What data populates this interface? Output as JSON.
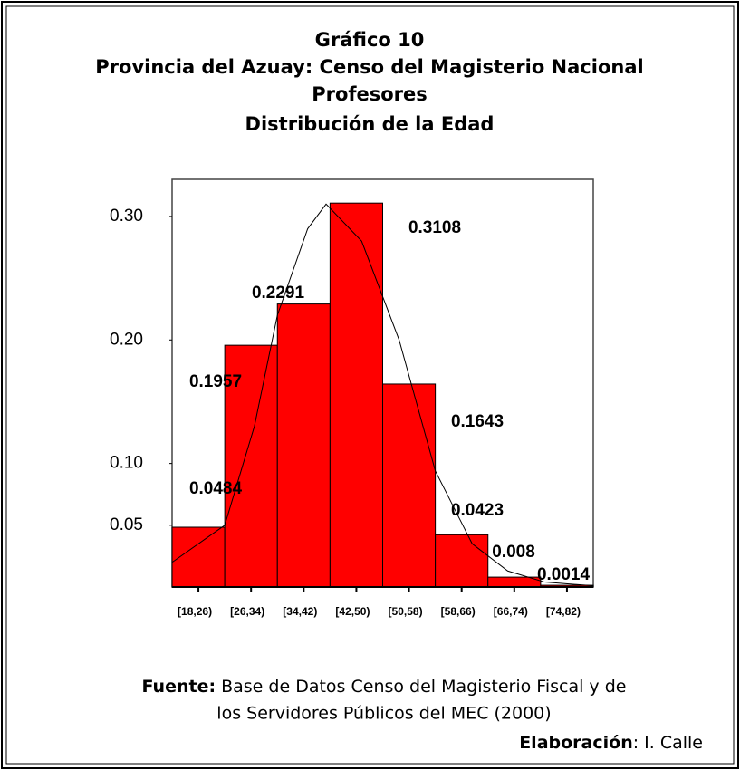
{
  "chart_data": {
    "type": "histogram",
    "title": "Gráfico 10",
    "subtitle": [
      "Provincia del Azuay: Censo del Magisterio Nacional",
      "Profesores",
      "Distribución de la Edad"
    ],
    "bins": [
      18,
      26,
      34,
      42,
      50,
      58,
      66,
      74,
      82
    ],
    "categories": [
      "[18,26)",
      "[26,34)",
      "[34,42)",
      "[42,50)",
      "[50,58)",
      "[58,66)",
      "[66,74)",
      "[74,82)"
    ],
    "values": [
      0.0484,
      0.1957,
      0.2291,
      0.3108,
      0.1643,
      0.0423,
      0.008,
      0.0014
    ],
    "color": "#ff0000",
    "xlim": [
      18,
      82
    ],
    "ylim": [
      0,
      0.33
    ],
    "yticks": [
      {
        "value": 0.05,
        "label": "0.05"
      },
      {
        "value": 0.1,
        "label": "0.10"
      },
      {
        "value": 0.2,
        "label": "0.20"
      },
      {
        "value": 0.3,
        "label": "0.30"
      }
    ],
    "curve": {
      "x": [
        18,
        26,
        30.5,
        34,
        38.6,
        41.4,
        46.8,
        52.5,
        58,
        63.6,
        69,
        74.6,
        82
      ],
      "values": [
        0.02,
        0.05,
        0.13,
        0.22,
        0.29,
        0.31,
        0.28,
        0.2,
        0.094,
        0.035,
        0.013,
        0.004,
        0.001
      ],
      "color": "#000000"
    },
    "source_label": "Fuente:",
    "source_lines": [
      "Base de Datos Censo del Magisterio Fiscal y de",
      "los Servidores Públicos del MEC (2000)"
    ],
    "credit_label": "Elaboración",
    "credit_text": ": I. Calle"
  }
}
